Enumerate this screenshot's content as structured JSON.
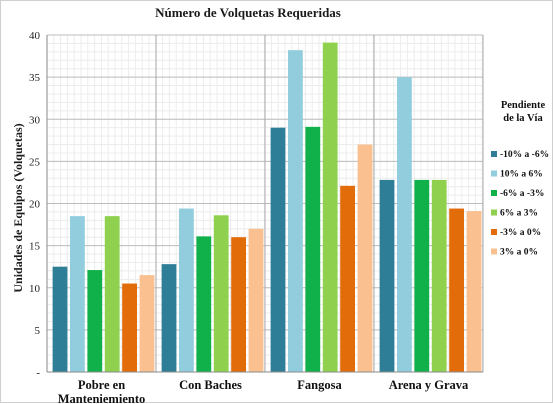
{
  "chart_data": {
    "type": "bar",
    "title": "Número de Volquetas Requeridas",
    "xlabel": "",
    "ylabel": "Unidades de Equipos (Volquetas)",
    "ylim": [
      0,
      40
    ],
    "yticks": [
      "-",
      "5",
      "10",
      "15",
      "20",
      "25",
      "30",
      "35",
      "40"
    ],
    "grid": true,
    "legend_position": "right",
    "legend_title": [
      "Pendiente",
      "de la Vía"
    ],
    "categories": [
      [
        "Pobre en",
        "Manteniemiento"
      ],
      [
        "Con Baches"
      ],
      [
        "Fangosa"
      ],
      [
        "Arena y Grava"
      ]
    ],
    "series": [
      {
        "name": "-10% a -6%",
        "color": "#2e7e98",
        "values": [
          12.5,
          12.8,
          29.0,
          22.8
        ]
      },
      {
        "name": "10% a 6%",
        "color": "#92cddd",
        "values": [
          18.5,
          19.4,
          38.2,
          35.0
        ]
      },
      {
        "name": "-6% a -3%",
        "color": "#10b04a",
        "values": [
          12.1,
          16.1,
          29.1,
          22.8
        ]
      },
      {
        "name": "6% a 3%",
        "color": "#8fd14f",
        "values": [
          18.5,
          18.6,
          39.1,
          22.8
        ]
      },
      {
        "name": "-3% a 0%",
        "color": "#e36c0a",
        "values": [
          10.5,
          16.0,
          22.1,
          19.4
        ]
      },
      {
        "name": "3% a 0%",
        "color": "#fac090",
        "values": [
          11.5,
          17.0,
          27.0,
          19.1
        ]
      }
    ]
  }
}
